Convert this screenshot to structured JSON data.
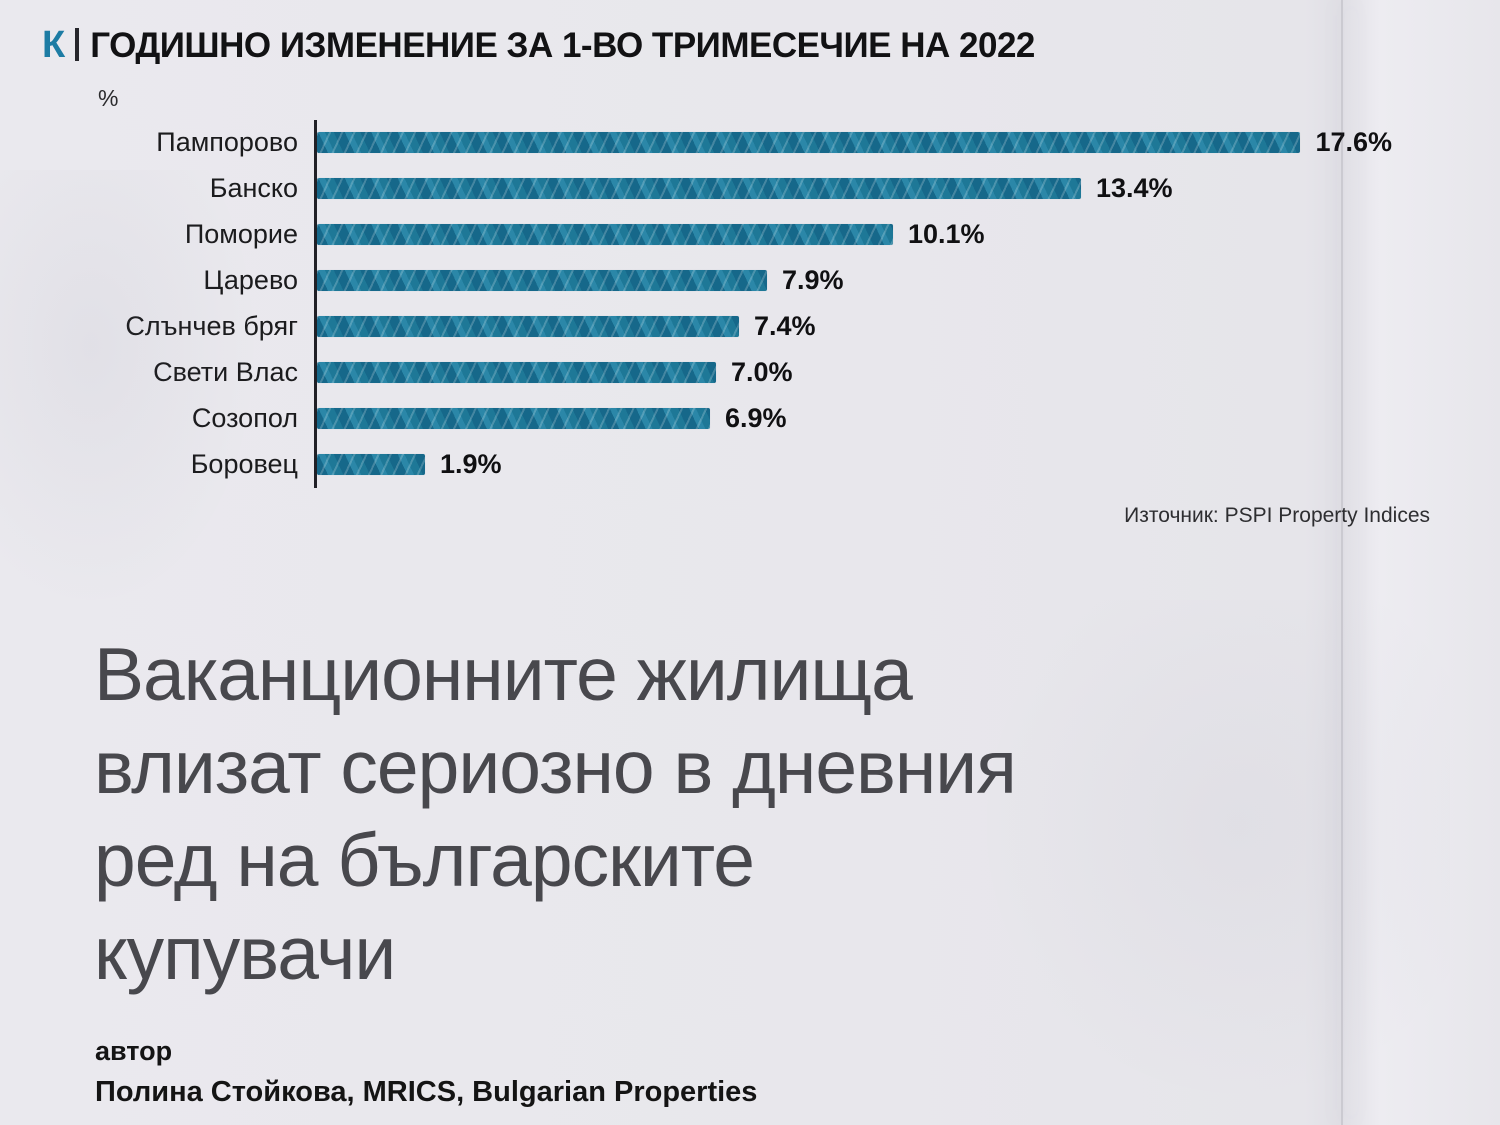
{
  "logo": {
    "letter": "К"
  },
  "page": {
    "headline_lines": [
      "Ваканционните жилища",
      "влизат сериозно в дневния",
      "ред на българските",
      "купувачи"
    ],
    "author_label": "автор",
    "author_name": "Полина Стойкова, MRICS, Bulgarian Properties"
  },
  "chart_data": {
    "type": "bar",
    "orientation": "horizontal",
    "title": "ГОДИШНО ИЗМЕНЕНИЕ ЗА 1-ВО ТРИМЕСЕЧИЕ НА 2022",
    "ylabel": "%",
    "xlabel": "",
    "categories": [
      "Пампорово",
      "Банско",
      "Поморие",
      "Царево",
      "Слънчев бряг",
      "Свети Влас",
      "Созопол",
      "Боровец"
    ],
    "values": [
      17.6,
      13.4,
      10.1,
      7.9,
      7.4,
      7.0,
      6.9,
      1.9
    ],
    "value_labels": [
      "17.6%",
      "13.4%",
      "10.1%",
      "7.9%",
      "7.4%",
      "7.0%",
      "6.9%",
      "1.9%"
    ],
    "xlim": [
      0,
      18.8
    ],
    "grid": false,
    "legend": false,
    "bar_color": "#1f7896",
    "source": "Източник: PSPI Property Indices"
  },
  "colors": {
    "accent_teal": "#1f7896",
    "paper": "#e9e8ed",
    "headline_gray": "#48484d",
    "text_black": "#141414"
  }
}
